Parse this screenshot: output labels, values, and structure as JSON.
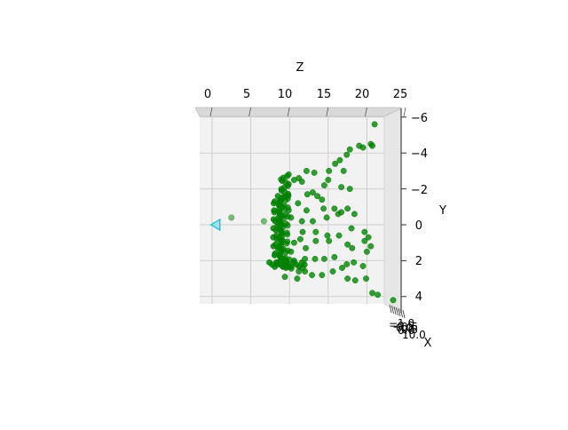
{
  "chart_data": {
    "type": "scatter",
    "projection": "3d",
    "view": "looking along the X axis (Z horizontal on top, Y vertical on right)",
    "axes": {
      "z": {
        "label": "Z",
        "lim": [
          0,
          25
        ],
        "ticks": [
          "0",
          "5",
          "10",
          "15",
          "20",
          "25"
        ]
      },
      "y": {
        "label": "Y",
        "lim": [
          -6.5,
          4.7
        ],
        "inverted": true,
        "ticks": [
          "−6",
          "−4",
          "−2",
          "0",
          "2",
          "4"
        ]
      },
      "x": {
        "label": "X",
        "tick_labels": [
          "−0.5",
          "0.0",
          "0.5",
          "−1.0",
          "−0.5",
          "0.0",
          "0.5",
          "10.0"
        ]
      }
    },
    "grid": true,
    "pane_color": "#f2f2f2",
    "point_color": "#008000",
    "marker_color": "#17becf",
    "camera_marker": {
      "z": 0.2,
      "y": 0.0
    },
    "series": [
      {
        "points": [
          [
            2.5,
            -0.4
          ],
          [
            6.7,
            -0.2
          ],
          [
            21.0,
            -5.6
          ],
          [
            20.5,
            -4.5
          ],
          [
            20.7,
            -4.4
          ],
          [
            19.5,
            -4.3
          ],
          [
            19.0,
            -4.4
          ],
          [
            17.8,
            -4.2
          ],
          [
            17.4,
            -3.9
          ],
          [
            16.5,
            -3.6
          ],
          [
            15.9,
            -3.4
          ],
          [
            17.0,
            -3.0
          ],
          [
            15.1,
            -3.0
          ],
          [
            13.2,
            -2.9
          ],
          [
            12.2,
            -3.0
          ],
          [
            11.2,
            -2.6
          ],
          [
            10.6,
            -2.5
          ],
          [
            11.6,
            -2.4
          ],
          [
            15.0,
            -2.5
          ],
          [
            14.5,
            -2.2
          ],
          [
            16.7,
            -2.1
          ],
          [
            17.8,
            -2.0
          ],
          [
            12.3,
            -1.7
          ],
          [
            13.0,
            -1.8
          ],
          [
            13.6,
            -1.6
          ],
          [
            14.2,
            -1.4
          ],
          [
            11.1,
            -1.2
          ],
          [
            12.2,
            -0.8
          ],
          [
            14.4,
            -0.9
          ],
          [
            15.8,
            -0.9
          ],
          [
            16.7,
            -0.7
          ],
          [
            17.5,
            -0.9
          ],
          [
            18.4,
            -0.6
          ],
          [
            9.9,
            -0.8
          ],
          [
            10.2,
            -0.4
          ],
          [
            11.6,
            -0.2
          ],
          [
            13.0,
            -0.2
          ],
          [
            14.8,
            -0.4
          ],
          [
            16.3,
            -0.6
          ],
          [
            8.5,
            -0.1
          ],
          [
            11.7,
            0.4
          ],
          [
            13.4,
            0.4
          ],
          [
            14.9,
            0.6
          ],
          [
            16.4,
            0.6
          ],
          [
            18.0,
            0.2
          ],
          [
            19.7,
            0.4
          ],
          [
            20.2,
            0.7
          ],
          [
            19.7,
            0.9
          ],
          [
            11.4,
            0.8
          ],
          [
            12.1,
            1.3
          ],
          [
            13.4,
            0.9
          ],
          [
            15.1,
            0.9
          ],
          [
            17.5,
            1.1
          ],
          [
            18.1,
            1.3
          ],
          [
            20.0,
            1.5
          ],
          [
            20.5,
            1.2
          ],
          [
            12.0,
            1.9
          ],
          [
            13.3,
            1.9
          ],
          [
            14.5,
            1.9
          ],
          [
            15.8,
            1.8
          ],
          [
            17.4,
            2.2
          ],
          [
            18.3,
            2.1
          ],
          [
            19.5,
            2.3
          ],
          [
            11.2,
            2.6
          ],
          [
            12.9,
            2.8
          ],
          [
            14.2,
            2.8
          ],
          [
            15.6,
            2.6
          ],
          [
            16.8,
            2.4
          ],
          [
            17.5,
            3.0
          ],
          [
            18.5,
            3.1
          ],
          [
            19.9,
            3.0
          ],
          [
            21.4,
            3.9
          ],
          [
            20.7,
            3.8
          ],
          [
            23.4,
            4.2
          ],
          [
            11.0,
            3.0
          ],
          [
            9.4,
            2.9
          ],
          [
            12.0,
            2.6
          ],
          [
            10.6,
            1.0
          ],
          [
            10.2,
            1.5
          ],
          [
            10.6,
            2.0
          ],
          [
            11.7,
            2.4
          ]
        ]
      }
    ]
  }
}
